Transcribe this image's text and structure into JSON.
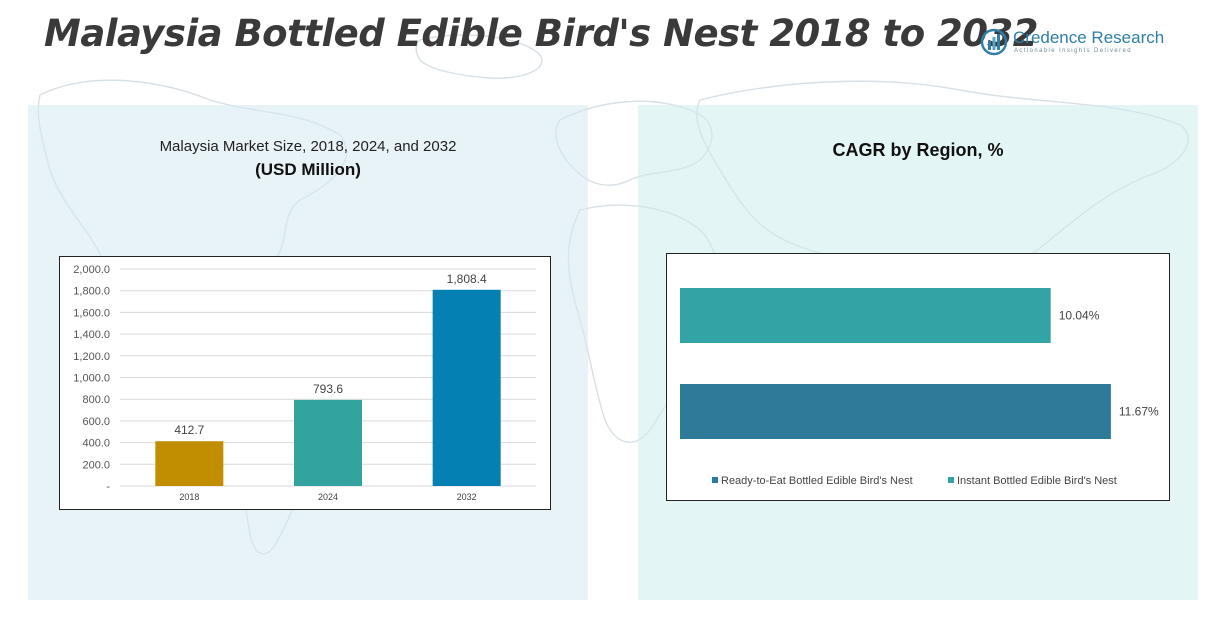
{
  "header": {
    "title": "Malaysia Bottled Edible Bird's Nest 2018 to 2032"
  },
  "logo": {
    "name": "Credence Research",
    "tagline": "Actionable Insights Delivered"
  },
  "left_panel": {
    "title": "Malaysia Market Size, 2018, 2024, and 2032",
    "subtitle": "(USD Million)"
  },
  "right_panel": {
    "title": "CAGR by Region, %"
  },
  "colors": {
    "bar_2018": "#C08E00",
    "bar_2024": "#33A3A0",
    "bar_2032": "#0480B3",
    "ready_to_eat": "#2E7A99",
    "instant": "#33A3A6",
    "grid": "#D9D9D9"
  },
  "chart_data": [
    {
      "type": "bar",
      "categories": [
        "2018",
        "2024",
        "2032"
      ],
      "values": [
        412.7,
        793.6,
        1808.4
      ],
      "value_labels": [
        "412.7",
        "793.6",
        "1,808.4"
      ],
      "title": "Malaysia Market Size, 2018, 2024, and 2032",
      "ylabel": "",
      "xlabel": "",
      "ylim": [
        0,
        2000
      ],
      "yticks": [
        "-",
        "200.0",
        "400.0",
        "600.0",
        "800.0",
        "1,000.0",
        "1,200.0",
        "1,400.0",
        "1,600.0",
        "1,800.0",
        "2,000.0"
      ],
      "grid": true
    },
    {
      "type": "bar",
      "orientation": "horizontal",
      "title": "CAGR by Region, %",
      "series": [
        {
          "name": "Ready-to-Eat Bottled Edible Bird's Nest",
          "value": 11.67,
          "label": "11.67%"
        },
        {
          "name": "Instant Bottled Edible Bird's Nest",
          "value": 10.04,
          "label": "10.04%"
        }
      ],
      "legend": "bottom",
      "grid": false
    }
  ]
}
